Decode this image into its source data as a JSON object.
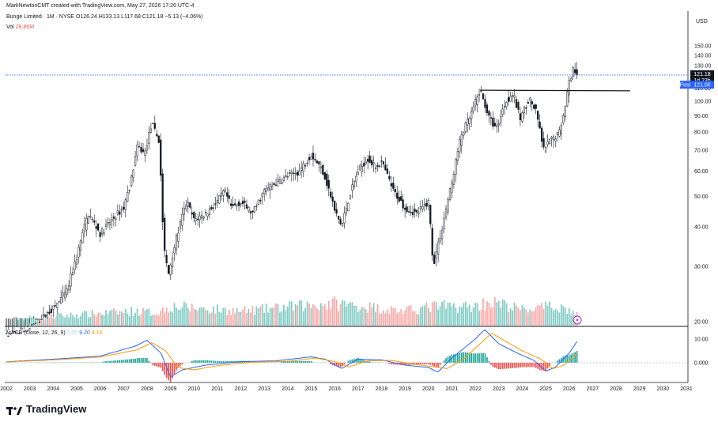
{
  "header": {
    "credit": "MarkNewtonCMT created with TradingView.com, May 27, 2026 17:26 UTC-4",
    "symbol_line": "Bunge Limited · 1M · NYSE",
    "ohlc": "O126.24 H133.13 L117.68 C121.18 −5.13 (−4.06%)",
    "vol_label": "Vol",
    "vol_value": "28.86M"
  },
  "axis": {
    "currency": "USD"
  },
  "badges": {
    "last_price": "121.18",
    "countdown": "1d 23h",
    "post_label": "Post",
    "post_price": "121.00"
  },
  "macd": {
    "label": "MACD (close, 12, 26, 9)",
    "hist_value": "5.05",
    "macd_value": "9.20",
    "signal_value": "4.16"
  },
  "brand": {
    "name": "TradingView"
  },
  "colors": {
    "up": "#26a69a",
    "down": "#ef5350",
    "macd_line": "#2962ff",
    "signal_line": "#ff9800",
    "price_line": "#2962ff",
    "post_badge": "#2962ff"
  },
  "chart_data": {
    "type": "candlestick",
    "price_axis": {
      "ticks": [
        20,
        30,
        40,
        50,
        60,
        70,
        80,
        90,
        100,
        110,
        120,
        130,
        140,
        150
      ],
      "scale": "log"
    },
    "macd_axis": {
      "ticks": [
        0.0,
        10.0
      ],
      "tick_labels": [
        "0.000",
        "10.00"
      ]
    },
    "time_axis": {
      "labels": [
        "2002",
        "2003",
        "2004",
        "2005",
        "2006",
        "2007",
        "2008",
        "2009",
        "2010",
        "2011",
        "2012",
        "2013",
        "2014",
        "2015",
        "2016",
        "2017",
        "2018",
        "2019",
        "2020",
        "2021",
        "2022",
        "2023",
        "2024",
        "2025",
        "2026",
        "2027",
        "2028",
        "2029",
        "2030",
        "2031"
      ]
    },
    "price_anchors": [
      [
        2002.0,
        18
      ],
      [
        2003.0,
        19
      ],
      [
        2004.0,
        22
      ],
      [
        2004.6,
        25
      ],
      [
        2005.0,
        32
      ],
      [
        2005.5,
        44
      ],
      [
        2006.0,
        38
      ],
      [
        2006.5,
        42
      ],
      [
        2007.0,
        46
      ],
      [
        2007.3,
        55
      ],
      [
        2007.6,
        72
      ],
      [
        2007.9,
        68
      ],
      [
        2008.2,
        85
      ],
      [
        2008.5,
        75
      ],
      [
        2008.7,
        35
      ],
      [
        2008.9,
        28
      ],
      [
        2009.3,
        38
      ],
      [
        2009.7,
        48
      ],
      [
        2010.0,
        42
      ],
      [
        2010.5,
        44
      ],
      [
        2011.0,
        48
      ],
      [
        2011.3,
        52
      ],
      [
        2011.6,
        46
      ],
      [
        2012.0,
        48
      ],
      [
        2012.5,
        44
      ],
      [
        2013.0,
        52
      ],
      [
        2013.5,
        55
      ],
      [
        2014.0,
        58
      ],
      [
        2014.5,
        60
      ],
      [
        2015.0,
        68
      ],
      [
        2015.5,
        60
      ],
      [
        2016.0,
        45
      ],
      [
        2016.3,
        40
      ],
      [
        2016.7,
        52
      ],
      [
        2017.0,
        60
      ],
      [
        2017.4,
        66
      ],
      [
        2017.7,
        62
      ],
      [
        2018.0,
        64
      ],
      [
        2018.5,
        52
      ],
      [
        2019.0,
        46
      ],
      [
        2019.5,
        44
      ],
      [
        2020.0,
        48
      ],
      [
        2020.2,
        30
      ],
      [
        2020.6,
        40
      ],
      [
        2021.0,
        55
      ],
      [
        2021.4,
        78
      ],
      [
        2021.8,
        90
      ],
      [
        2022.2,
        108
      ],
      [
        2022.6,
        88
      ],
      [
        2022.9,
        82
      ],
      [
        2023.3,
        100
      ],
      [
        2023.6,
        106
      ],
      [
        2023.9,
        88
      ],
      [
        2024.3,
        102
      ],
      [
        2024.6,
        92
      ],
      [
        2024.9,
        70
      ],
      [
        2025.2,
        75
      ],
      [
        2025.6,
        80
      ],
      [
        2025.8,
        95
      ],
      [
        2026.0,
        115
      ],
      [
        2026.2,
        128
      ],
      [
        2026.35,
        121.18
      ]
    ],
    "volume_anchors": [
      [
        2002.0,
        0.2
      ],
      [
        2007.5,
        0.45
      ],
      [
        2008.4,
        0.4
      ],
      [
        2009.0,
        0.6
      ],
      [
        2012.0,
        0.45
      ],
      [
        2016.0,
        0.7
      ],
      [
        2019.0,
        0.45
      ],
      [
        2020.2,
        0.6
      ],
      [
        2022.0,
        0.6
      ],
      [
        2022.6,
        0.75
      ],
      [
        2024.0,
        0.5
      ],
      [
        2025.6,
        0.6
      ],
      [
        2026.35,
        0.35
      ]
    ],
    "macd_anchors": [
      [
        2002.0,
        0.4
      ],
      [
        2004.0,
        1.5
      ],
      [
        2006.0,
        2.8
      ],
      [
        2007.5,
        7.0
      ],
      [
        2008.0,
        9.5
      ],
      [
        2008.6,
        4.0
      ],
      [
        2009.0,
        -6.0
      ],
      [
        2009.5,
        -3.0
      ],
      [
        2010.5,
        -1.0
      ],
      [
        2012.0,
        0.5
      ],
      [
        2013.5,
        0.8
      ],
      [
        2015.0,
        2.5
      ],
      [
        2015.6,
        1.5
      ],
      [
        2016.3,
        -2.5
      ],
      [
        2017.0,
        1.5
      ],
      [
        2018.0,
        1.2
      ],
      [
        2019.0,
        -1.0
      ],
      [
        2020.0,
        -2.0
      ],
      [
        2020.4,
        -4.0
      ],
      [
        2021.0,
        2.0
      ],
      [
        2022.0,
        10.0
      ],
      [
        2022.4,
        14.0
      ],
      [
        2023.0,
        8.0
      ],
      [
        2023.8,
        4.0
      ],
      [
        2024.5,
        1.0
      ],
      [
        2025.0,
        -3.5
      ],
      [
        2025.4,
        -2.0
      ],
      [
        2026.0,
        4.0
      ],
      [
        2026.35,
        9.2
      ]
    ],
    "signal_anchors": [
      [
        2002.0,
        0.3
      ],
      [
        2004.0,
        1.2
      ],
      [
        2006.0,
        2.4
      ],
      [
        2007.6,
        5.5
      ],
      [
        2008.2,
        8.5
      ],
      [
        2008.8,
        5.0
      ],
      [
        2009.3,
        -2.0
      ],
      [
        2010.0,
        -3.0
      ],
      [
        2011.0,
        -1.2
      ],
      [
        2012.5,
        0.2
      ],
      [
        2014.0,
        0.6
      ],
      [
        2015.2,
        2.0
      ],
      [
        2016.0,
        0.5
      ],
      [
        2016.6,
        -1.8
      ],
      [
        2017.4,
        0.8
      ],
      [
        2018.4,
        1.0
      ],
      [
        2019.5,
        -0.8
      ],
      [
        2020.3,
        -1.8
      ],
      [
        2020.8,
        -2.5
      ],
      [
        2021.5,
        1.5
      ],
      [
        2022.2,
        8.0
      ],
      [
        2022.7,
        12.5
      ],
      [
        2023.3,
        9.0
      ],
      [
        2024.0,
        5.0
      ],
      [
        2024.8,
        1.5
      ],
      [
        2025.3,
        -2.5
      ],
      [
        2025.8,
        -1.0
      ],
      [
        2026.35,
        4.16
      ]
    ],
    "resistance_line": {
      "x": [
        2022.2,
        2028.6
      ],
      "y": [
        108.5,
        108.0
      ]
    },
    "last_price": 121.18,
    "post_price": 121.0
  }
}
